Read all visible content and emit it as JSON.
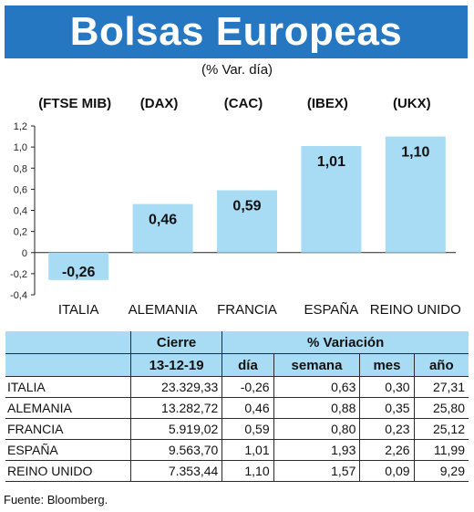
{
  "title": "Bolsas Europeas",
  "subtitle": "(% Var. día)",
  "chart_data": {
    "type": "bar",
    "categories": [
      "ITALIA",
      "ALEMANIA",
      "FRANCIA",
      "ESPAÑA",
      "REINO UNIDO"
    ],
    "tickers": [
      "(FTSE MIB)",
      "(DAX)",
      "(CAC)",
      "(IBEX)",
      "(UKX)"
    ],
    "values": [
      -0.26,
      0.46,
      0.59,
      1.01,
      1.1
    ],
    "value_labels": [
      "-0,26",
      "0,46",
      "0,59",
      "1,01",
      "1,10"
    ],
    "ylim": [
      -0.4,
      1.2
    ],
    "yticks": [
      1.2,
      1.0,
      0.8,
      0.6,
      0.4,
      0.2,
      0,
      -0.2,
      -0.4
    ],
    "ytick_labels": [
      "1,2",
      "1,0",
      "0,8",
      "0,6",
      "0,4",
      "0,2",
      "0",
      "-0,2",
      "-0,4"
    ],
    "bar_color": "#a8dcf5"
  },
  "table": {
    "group_headers": [
      "Cierre",
      "% Variación"
    ],
    "date": "13-12-19",
    "columns": [
      "día",
      "semana",
      "mes",
      "año"
    ],
    "rows": [
      {
        "country": "ITALIA",
        "cierre": "23.329,33",
        "dia": "-0,26",
        "semana": "0,63",
        "mes": "0,30",
        "anio": "27,31"
      },
      {
        "country": "ALEMANIA",
        "cierre": "13.282,72",
        "dia": "0,46",
        "semana": "0,88",
        "mes": "0,35",
        "anio": "25,80"
      },
      {
        "country": "FRANCIA",
        "cierre": "5.919,02",
        "dia": "0,59",
        "semana": "0,80",
        "mes": "0,23",
        "anio": "25,12"
      },
      {
        "country": "ESPAÑA",
        "cierre": "9.563,70",
        "dia": "1,01",
        "semana": "1,93",
        "mes": "2,26",
        "anio": "11,99"
      },
      {
        "country": "REINO UNIDO",
        "cierre": "7.353,44",
        "dia": "1,10",
        "semana": "1,57",
        "mes": "0,09",
        "anio": "9,29"
      }
    ]
  },
  "source": "Fuente: Bloomberg.",
  "colors": {
    "header": "#2677c1",
    "accent": "#a8dcf5"
  }
}
